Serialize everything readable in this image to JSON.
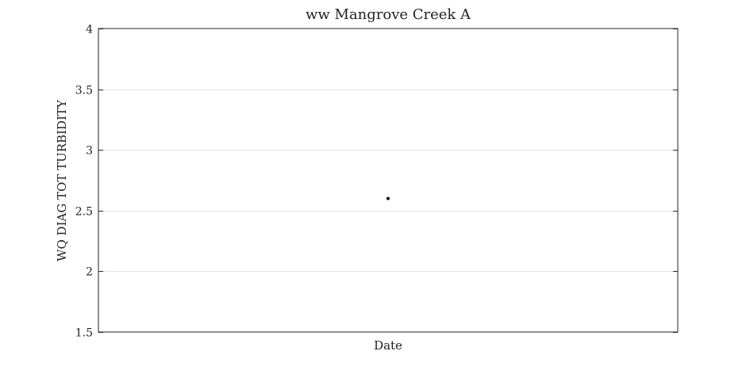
{
  "chart_data": {
    "type": "scatter",
    "title": "ww Mangrove Creek A",
    "xlabel": "Date",
    "ylabel": "WQ DIAG TOT TURBIDITY",
    "ylim": [
      1.5,
      4
    ],
    "yticks": [
      1.5,
      2,
      2.5,
      3,
      3.5,
      4
    ],
    "ytick_labels": [
      "1.5",
      "2",
      "2.5",
      "3",
      "3.5",
      "4"
    ],
    "grid": "horizontal",
    "legend": "none",
    "series": [
      {
        "points": [
          {
            "x": 0.5,
            "y": 2.6
          }
        ],
        "color": "#000000"
      }
    ]
  }
}
